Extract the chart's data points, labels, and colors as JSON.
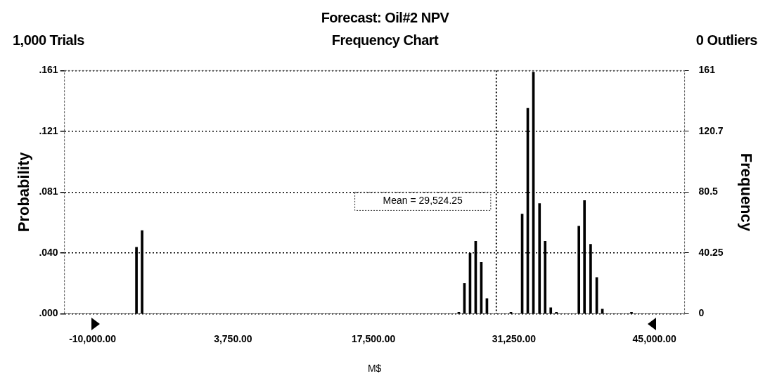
{
  "chart_data": {
    "type": "bar",
    "title": "Forecast: Oil#2 NPV",
    "subtitle": "Frequency Chart",
    "annotations": [
      "1,000 Trials",
      "0 Outliers"
    ],
    "xlabel": "M$",
    "ylabel": "Probability",
    "y2label": "Frequency",
    "x": [
      -5700,
      -5150,
      25850,
      26400,
      26950,
      27500,
      28050,
      28600,
      30950,
      31450,
      32050,
      32600,
      33150,
      33750,
      34300,
      34850,
      35400,
      36550,
      37050,
      37600,
      38150,
      38750,
      39350,
      39900,
      42750
    ],
    "series": [
      {
        "color": "#000000",
        "axis": "y2",
        "values": [
          44,
          55,
          1,
          20,
          40,
          48,
          34,
          10,
          1,
          null,
          66,
          136,
          160,
          73,
          48,
          4,
          1,
          null,
          null,
          58,
          75,
          46,
          24,
          3,
          1
        ]
      }
    ],
    "xlim": [
      -12750,
      47950
    ],
    "xticks": [
      {
        "value": -10000,
        "label": "-10,000.00"
      },
      {
        "value": 3750,
        "label": "3,750.00"
      },
      {
        "value": 17500,
        "label": "17,500.00"
      },
      {
        "value": 31250,
        "label": "31,250.00"
      },
      {
        "value": 45000,
        "label": "45,000.00"
      }
    ],
    "ylim": [
      0,
      0.161
    ],
    "yticks": [
      {
        "value": 0,
        "label": ".000"
      },
      {
        "value": 0.04025,
        "label": ".040"
      },
      {
        "value": 0.0805,
        "label": ".081"
      },
      {
        "value": 0.12075,
        "label": ".121"
      },
      {
        "value": 0.161,
        "label": ".161"
      }
    ],
    "y2lim": [
      0,
      161
    ],
    "y2ticks": [
      0,
      40.25,
      80.5,
      {
        "value": 120.75,
        "label": "120.7"
      },
      161
    ],
    "ref_lines": [
      {
        "axis": "x",
        "value": 29524.25,
        "label": "Mean = 29,524.25",
        "line_style": "dotted"
      }
    ],
    "grid": "y",
    "legend": false
  }
}
